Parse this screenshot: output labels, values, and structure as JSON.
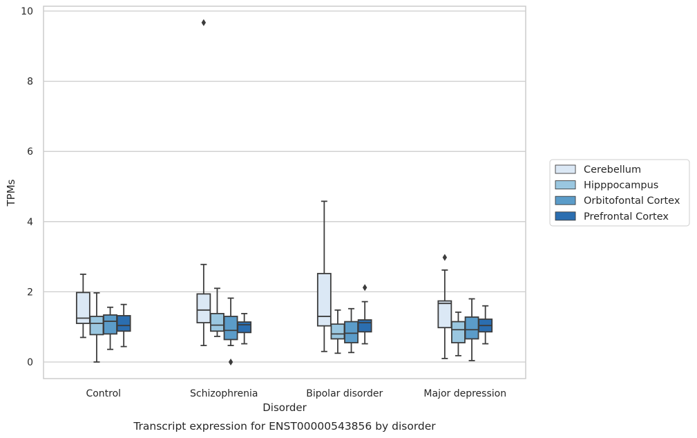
{
  "chart_data": {
    "type": "box",
    "xlabel": "Disorder",
    "ylabel": "TPMs",
    "caption": "Transcript expression for ENST00000543856 by disorder",
    "ylim": [
      -0.45,
      10.15
    ],
    "yticks": [
      0,
      2,
      4,
      6,
      8,
      10
    ],
    "grid": true,
    "legend_position": "right",
    "categories": [
      "Control",
      "Schizophrenia",
      "Bipolar disorder",
      "Major depression"
    ],
    "series": [
      {
        "name": "Cerebellum",
        "color": "#dbe8f5",
        "boxes": [
          {
            "whisker_low": 0.7,
            "q1": 1.1,
            "median": 1.25,
            "q3": 1.98,
            "whisker_high": 2.5,
            "outliers": []
          },
          {
            "whisker_low": 0.47,
            "q1": 1.12,
            "median": 1.48,
            "q3": 1.94,
            "whisker_high": 2.78,
            "outliers": [
              9.67
            ]
          },
          {
            "whisker_low": 0.3,
            "q1": 1.03,
            "median": 1.3,
            "q3": 2.52,
            "whisker_high": 4.58,
            "outliers": []
          },
          {
            "whisker_low": 0.1,
            "q1": 0.98,
            "median": 1.67,
            "q3": 1.74,
            "whisker_high": 2.62,
            "outliers": [
              2.98
            ]
          }
        ]
      },
      {
        "name": "Hipppocampus",
        "color": "#9ac7e0",
        "boxes": [
          {
            "whisker_low": 0.0,
            "q1": 0.78,
            "median": 1.1,
            "q3": 1.3,
            "whisker_high": 1.97,
            "outliers": []
          },
          {
            "whisker_low": 0.73,
            "q1": 0.88,
            "median": 1.05,
            "q3": 1.38,
            "whisker_high": 2.1,
            "outliers": []
          },
          {
            "whisker_low": 0.25,
            "q1": 0.66,
            "median": 0.8,
            "q3": 1.08,
            "whisker_high": 1.48,
            "outliers": []
          },
          {
            "whisker_low": 0.18,
            "q1": 0.55,
            "median": 0.92,
            "q3": 1.15,
            "whisker_high": 1.42,
            "outliers": []
          }
        ]
      },
      {
        "name": "Orbitofontal Cortex",
        "color": "#5b9cc9",
        "boxes": [
          {
            "whisker_low": 0.36,
            "q1": 0.8,
            "median": 1.16,
            "q3": 1.34,
            "whisker_high": 1.56,
            "outliers": []
          },
          {
            "whisker_low": 0.47,
            "q1": 0.64,
            "median": 0.9,
            "q3": 1.3,
            "whisker_high": 1.82,
            "outliers": [
              0.0
            ]
          },
          {
            "whisker_low": 0.27,
            "q1": 0.55,
            "median": 0.82,
            "q3": 1.15,
            "whisker_high": 1.52,
            "outliers": []
          },
          {
            "whisker_low": 0.04,
            "q1": 0.66,
            "median": 0.92,
            "q3": 1.28,
            "whisker_high": 1.8,
            "outliers": []
          }
        ]
      },
      {
        "name": "Prefrontal Cortex",
        "color": "#2b6eb0",
        "boxes": [
          {
            "whisker_low": 0.44,
            "q1": 0.88,
            "median": 1.04,
            "q3": 1.32,
            "whisker_high": 1.64,
            "outliers": []
          },
          {
            "whisker_low": 0.52,
            "q1": 0.84,
            "median": 1.06,
            "q3": 1.14,
            "whisker_high": 1.38,
            "outliers": []
          },
          {
            "whisker_low": 0.52,
            "q1": 0.86,
            "median": 1.12,
            "q3": 1.2,
            "whisker_high": 1.72,
            "outliers": [
              2.12
            ]
          },
          {
            "whisker_low": 0.52,
            "q1": 0.86,
            "median": 1.04,
            "q3": 1.22,
            "whisker_high": 1.6,
            "outliers": []
          }
        ]
      }
    ]
  }
}
